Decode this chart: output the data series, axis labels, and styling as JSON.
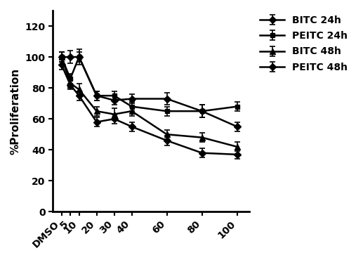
{
  "x_labels": [
    "DMSO",
    "5",
    "10",
    "20",
    "30",
    "40",
    "60",
    "80",
    "100"
  ],
  "x_positions": [
    0,
    5,
    10,
    20,
    30,
    40,
    60,
    80,
    100
  ],
  "series": {
    "BITC 24h": {
      "y": [
        100,
        100,
        100,
        75,
        72,
        73,
        73,
        65,
        55
      ],
      "yerr": [
        3,
        4,
        5,
        3,
        3,
        3,
        4,
        4,
        3
      ],
      "marker": "D",
      "markersize": 5
    },
    "PEITC 24h": {
      "y": [
        100,
        86,
        100,
        75,
        75,
        68,
        65,
        65,
        68
      ],
      "yerr": [
        3,
        3,
        3,
        3,
        3,
        3,
        3,
        4,
        3
      ],
      "marker": "s",
      "markersize": 5
    },
    "BITC 48h": {
      "y": [
        100,
        83,
        79,
        65,
        63,
        65,
        50,
        48,
        42
      ],
      "yerr": [
        3,
        3,
        4,
        3,
        4,
        3,
        3,
        3,
        3
      ],
      "marker": "^",
      "markersize": 5
    },
    "PEITC 48h": {
      "y": [
        95,
        82,
        75,
        58,
        60,
        55,
        46,
        38,
        37
      ],
      "yerr": [
        3,
        3,
        3,
        3,
        3,
        3,
        3,
        3,
        3
      ],
      "marker": "D",
      "markersize": 5
    }
  },
  "ylabel": "%Proliferation",
  "ylim": [
    0,
    130
  ],
  "yticks": [
    0,
    20,
    40,
    60,
    80,
    100,
    120
  ],
  "legend_order": [
    "BITC 24h",
    "PEITC 24h",
    "BITC 48h",
    "PEITC 48h"
  ],
  "legend_fontsize": 10,
  "ylabel_fontsize": 11,
  "tick_fontsize": 10,
  "linewidth": 1.8,
  "capsize": 3,
  "elinewidth": 1.2,
  "capthick": 1.2
}
